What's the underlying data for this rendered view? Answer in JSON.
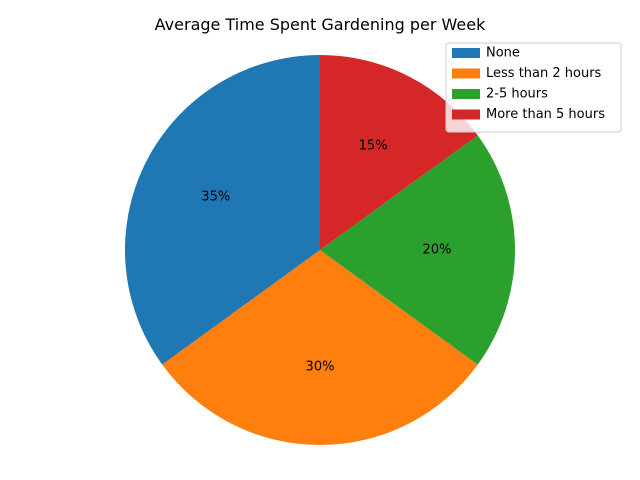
{
  "chart_data": {
    "type": "pie",
    "title": "Average Time Spent Gardening per Week",
    "categories": [
      "None",
      "Less than 2 hours",
      "2-5 hours",
      "More than 5 hours"
    ],
    "values": [
      35,
      30,
      20,
      15
    ],
    "labels": [
      "35%",
      "30%",
      "20%",
      "15%"
    ],
    "colors": [
      "#1f77b4",
      "#ff7f0e",
      "#2ca02c",
      "#d62728"
    ],
    "start_angle": 90,
    "direction": "counterclockwise",
    "legend_position": "top-right"
  }
}
